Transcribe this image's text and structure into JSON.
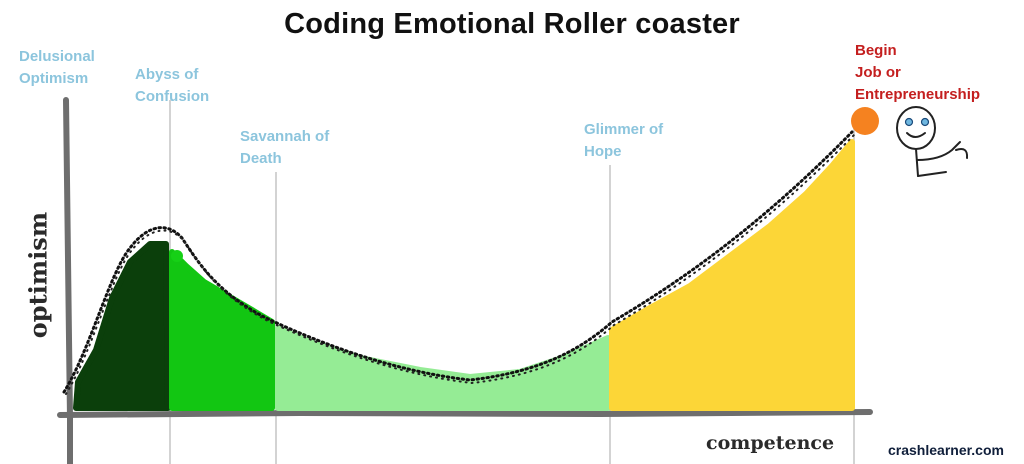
{
  "title": "Coding Emotional Roller coaster",
  "stages": [
    {
      "label": "Delusional\nOptimism",
      "color": "#1c4d1c"
    },
    {
      "label": "Abyss of\nConfusion",
      "color": "#14c014"
    },
    {
      "label": "Savannah of\nDeath",
      "color": "#8fe88f"
    },
    {
      "label": "Glimmer of\nHope",
      "color": "#f9d53a"
    },
    {
      "label": "Begin\nJob or\nEntrepreneurship",
      "color": "#c41f1f"
    }
  ],
  "axes": {
    "y_label": "optimism",
    "x_label": "competence"
  },
  "brand": "crashlearner.com",
  "colors": {
    "delusional": "#0a3d0a",
    "abyss": "#11c411",
    "savannah": "#95ec95",
    "hope": "#fcd637",
    "goal_dot": "#f58220",
    "axis": "#7a7a7a",
    "divider": "#c0c0c0"
  },
  "icons": {
    "goal": "orange-dot-icon",
    "figure": "stick-figure-icon"
  }
}
